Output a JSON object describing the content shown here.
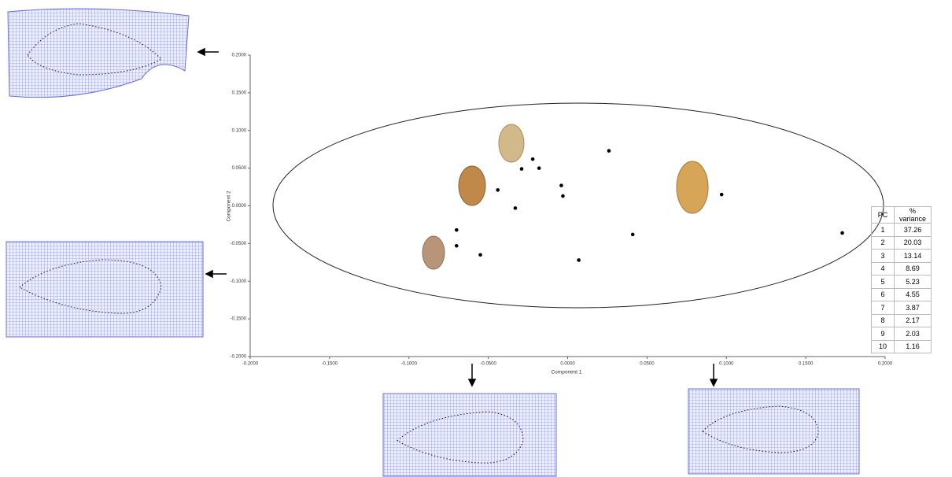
{
  "chart_data": {
    "type": "scatter",
    "x_label": "Component 1",
    "y_label": "Component 2",
    "xlim": [
      -0.2,
      0.2
    ],
    "ylim": [
      -0.2,
      0.2
    ],
    "xticks": [
      {
        "value": -0.2,
        "label": "-0.2000"
      },
      {
        "value": -0.15,
        "label": "-0.1500"
      },
      {
        "value": -0.1,
        "label": "-0.1000"
      },
      {
        "value": -0.05,
        "label": "-0.0500"
      },
      {
        "value": 0,
        "label": "0.0000"
      },
      {
        "value": 0.05,
        "label": "0.0500"
      },
      {
        "value": 0.1,
        "label": "0.1000"
      },
      {
        "value": 0.15,
        "label": "0.1500"
      },
      {
        "value": 0.2,
        "label": "0.2000"
      }
    ],
    "yticks": [
      {
        "value": -0.2,
        "label": "-0.2000"
      },
      {
        "value": -0.15,
        "label": "-0.1500"
      },
      {
        "value": -0.1,
        "label": "-0.1000"
      },
      {
        "value": -0.05,
        "label": "-0.0500"
      },
      {
        "value": 0,
        "label": "0.0000"
      },
      {
        "value": 0.05,
        "label": "0.0500"
      },
      {
        "value": 0.1,
        "label": "0.1000"
      },
      {
        "value": 0.15,
        "label": "0.1500"
      },
      {
        "value": 0.2,
        "label": "0.2000"
      }
    ],
    "color": "#000000",
    "x": [
      0.026,
      -0.022,
      -0.018,
      -0.029,
      -0.004,
      -0.003,
      -0.044,
      -0.033,
      0.097,
      0.173,
      0.041,
      -0.07,
      -0.07,
      -0.055,
      0.007
    ],
    "y": [
      0.073,
      0.062,
      0.05,
      0.049,
      0.027,
      0.013,
      0.021,
      -0.003,
      0.015,
      -0.036,
      -0.038,
      -0.032,
      -0.053,
      -0.065,
      -0.072
    ]
  },
  "table": {
    "header": [
      "PC",
      "% variance"
    ],
    "rows": [
      [
        "1",
        "37.26"
      ],
      [
        "2",
        "20.03"
      ],
      [
        "3",
        "13.14"
      ],
      [
        "4",
        "8.69"
      ],
      [
        "5",
        "5.23"
      ],
      [
        "6",
        "4.55"
      ],
      [
        "7",
        "3.87"
      ],
      [
        "8",
        "2.17"
      ],
      [
        "9",
        "2.03"
      ],
      [
        "10",
        "1.16"
      ]
    ]
  }
}
